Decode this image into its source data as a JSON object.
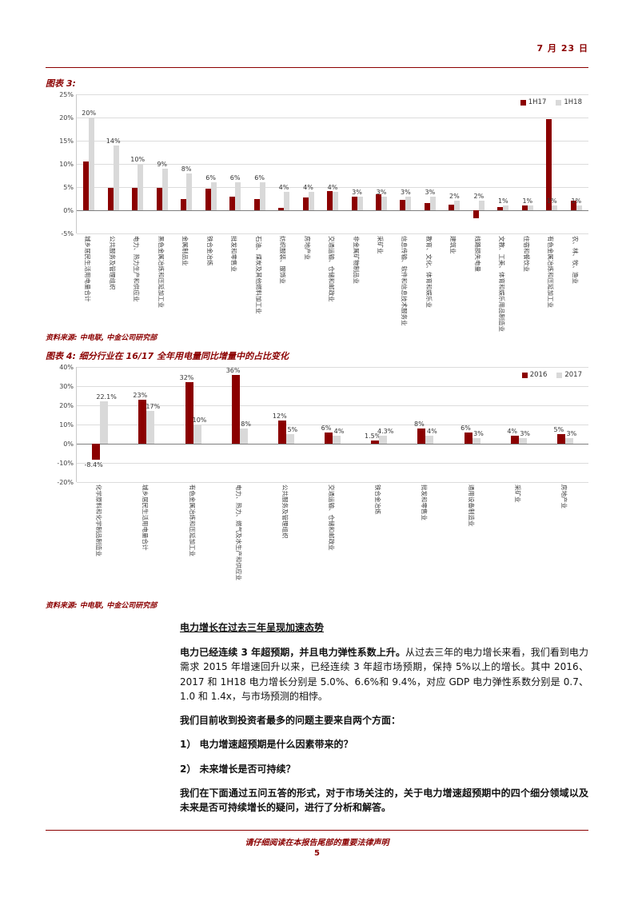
{
  "page": {
    "date": "7 月 23 日",
    "footer_disclaimer": "请仔细阅读在本报告尾部的重要法律声明",
    "page_number": "5"
  },
  "figures": {
    "fig3_source": "资料来源: 中电联, 中金公司研究部",
    "fig4_source": "资料来源: 中电联, 中金公司研究部"
  },
  "colors": {
    "accent_maroon": "#8B0000",
    "series_gray": "#D9D9D9"
  },
  "chart_data": [
    {
      "type": "bar",
      "title": "图表 3:",
      "ylim": [
        -5,
        25
      ],
      "yticks": [
        25,
        20,
        15,
        10,
        5,
        0,
        -5
      ],
      "ytick_format": "percent",
      "grid": true,
      "legend_position": "top-right",
      "categories": [
        "城乡居民生活用电量合计",
        "公共服务及管理组织",
        "电力、热力生产和供应业",
        "黑色金属冶炼和压延加工业",
        "金属制品业",
        "铁合金冶炼",
        "批发和零售业",
        "石油、煤炭及其他燃料加工业",
        "纺织服装、服饰业",
        "房地产业",
        "交通运输、仓储和邮政业",
        "非金属矿物制品业",
        "采矿业",
        "信息传输、软件和信息技术服务业",
        "教育、文化、体育和娱乐业",
        "建筑业",
        "线路损失电量",
        "文教、工美、体育和娱乐用品制造业",
        "住宿和餐饮业",
        "有色金属冶炼和压延加工业",
        "农、林、牧、渔业"
      ],
      "series": [
        {
          "name": "1H17",
          "color": "#8B0000",
          "values": [
            10.5,
            4.8,
            4.8,
            4.8,
            2.5,
            4.7,
            3.0,
            2.4,
            0.5,
            2.8,
            4.2,
            3.0,
            3.4,
            2.2,
            1.5,
            1.2,
            -1.8,
            0.7,
            1.0,
            19.6,
            2.0
          ]
        },
        {
          "name": "1H18",
          "color": "#D9D9D9",
          "values": [
            20,
            14,
            10,
            9,
            8,
            6,
            6,
            6,
            4,
            4,
            4,
            3,
            3,
            3,
            3,
            2,
            2,
            1,
            1,
            1,
            1
          ],
          "labels": [
            "20%",
            "14%",
            "10%",
            "9%",
            "8%",
            "6%",
            "6%",
            "6%",
            "4%",
            "4%",
            "4%",
            "3%",
            "3%",
            "3%",
            "3%",
            "2%",
            "2%",
            "1%",
            "1%",
            "1%",
            "1%"
          ]
        }
      ]
    },
    {
      "type": "bar",
      "title": "图表 4: 细分行业在 16/17 全年用电量同比增量中的占比变化",
      "ylim": [
        -20,
        40
      ],
      "yticks": [
        40,
        30,
        20,
        10,
        0,
        -10,
        -20
      ],
      "ytick_format": "percent",
      "grid": true,
      "legend_position": "top-right",
      "categories": [
        "化学原料和化学制品制造业",
        "城乡居民生活用电量合计",
        "有色金属冶炼和压延加工业",
        "电力、热力、燃气及水生产和供应业",
        "公共服务及管理组织",
        "交通运输、仓储和邮政业",
        "铁合金冶炼",
        "批发和零售业",
        "通用设备制造业",
        "采矿业",
        "房地产业"
      ],
      "series": [
        {
          "name": "2016",
          "color": "#8B0000",
          "values": [
            -8.4,
            23,
            32,
            36,
            12,
            6,
            1.5,
            8,
            6,
            4,
            5
          ],
          "labels": [
            "-8.4%",
            "23%",
            "32%",
            "36%",
            "12%",
            "6%",
            "1.5%",
            "8%",
            "6%",
            "4%",
            "5%"
          ]
        },
        {
          "name": "2017",
          "color": "#D9D9D9",
          "values": [
            22.1,
            17,
            10,
            8,
            5,
            4,
            4.3,
            4,
            3,
            3,
            3
          ],
          "labels": [
            "22.1%",
            "17%",
            "10%",
            "8%",
            "5%",
            "4%",
            "4.3%",
            "4%",
            "3%",
            "3%",
            "3%"
          ]
        }
      ]
    }
  ],
  "body": {
    "heading": "电力增长在过去三年呈现加速态势",
    "para1_lead": "电力已经连续 3 年超预期，并且电力弹性系数上升。",
    "para1_rest": "从过去三年的电力增长来看，我们看到电力需求 2015 年增速回升以来，已经连续 3 年超市场预期，保持 5%以上的增长。其中 2016、2017 和 1H18 电力增长分别是 5.0%、6.6%和 9.4%，对应 GDP 电力弹性系数分别是 0.7、1.0 和 1.4x，与市场预测的相悖。",
    "para2": "我们目前收到投资者最多的问题主要来自两个方面：",
    "q1": "1） 电力增速超预期是什么因素带来的？",
    "q2": "2） 未来增长是否可持续？",
    "para3": "我们在下面通过五问五答的形式，对于市场关注的，关于电力增速超预期中的四个细分领域以及未来是否可持续增长的疑问，进行了分析和解答。"
  }
}
